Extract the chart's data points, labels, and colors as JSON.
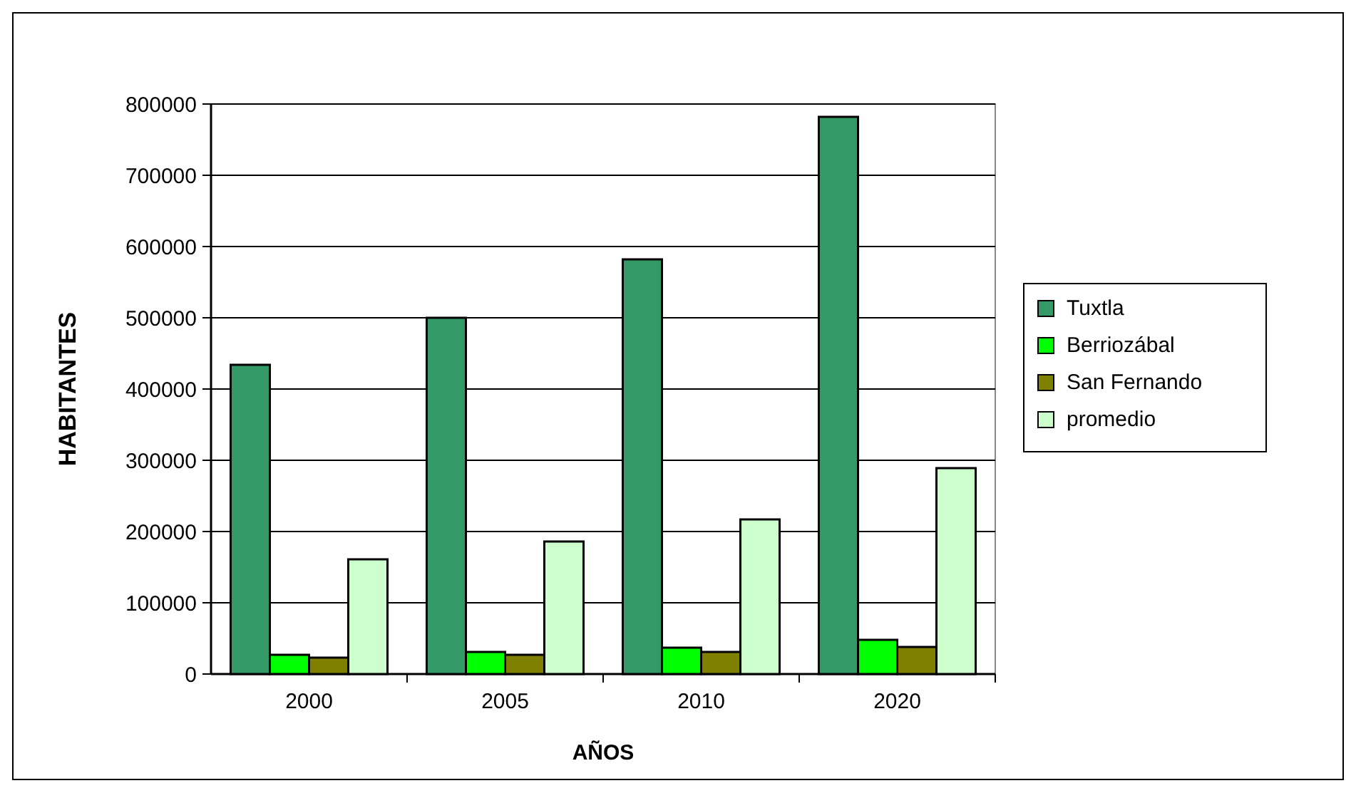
{
  "chart_data": {
    "type": "bar",
    "xlabel": "AÑOS",
    "ylabel": "HABITANTES",
    "categories": [
      "2000",
      "2005",
      "2010",
      "2020"
    ],
    "series": [
      {
        "name": "Tuxtla",
        "color": "#339966",
        "values": [
          434000,
          500000,
          582000,
          782000
        ]
      },
      {
        "name": "Berriozábal",
        "color": "#00ff00",
        "values": [
          27000,
          31000,
          37000,
          48000
        ]
      },
      {
        "name": "San Fernando",
        "color": "#808000",
        "values": [
          23000,
          27000,
          31000,
          38000
        ]
      },
      {
        "name": "promedio",
        "color": "#ccffcc",
        "values": [
          161000,
          186000,
          217000,
          289000
        ]
      }
    ],
    "ylim": [
      0,
      800000
    ],
    "yticks": [
      0,
      100000,
      200000,
      300000,
      400000,
      500000,
      600000,
      700000,
      800000
    ],
    "grid": "y",
    "legend": "right"
  }
}
